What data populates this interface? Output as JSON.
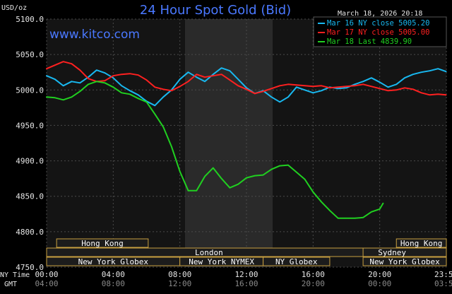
{
  "chart_data": {
    "type": "line",
    "title": "24 Hour Spot Gold (Bid)",
    "brand": "www.kitco.com",
    "timestamp": "March 18, 2026 20:18",
    "ylabel": "USD/oz",
    "ylim": [
      4750,
      5100
    ],
    "y_ticks": [
      "5100.0",
      "5050.0",
      "5000.0",
      "4950.0",
      "4900.0",
      "4850.0",
      "4800.0",
      "4750.0"
    ],
    "x_row_label": "NY Time",
    "x_row2_label": "GMT",
    "x_ticks": [
      "00:00",
      "04:00",
      "08:00",
      "12:00",
      "16:00",
      "20:00",
      "23:59"
    ],
    "x_ticks_gmt": [
      "04:00",
      "08:00",
      "12:00",
      "16:00",
      "20:00",
      "00:00",
      "03:59"
    ],
    "legend": [
      {
        "label": "Mar 16 NY close 5005.20",
        "color": "#18b8f0"
      },
      {
        "label": "Mar 17 NY close 5005.00",
        "color": "#ff2020"
      },
      {
        "label": "Mar 18 Last 4839.90",
        "color": "#20d020"
      }
    ],
    "sessions": [
      {
        "name": "Hong Kong"
      },
      {
        "name": "London"
      },
      {
        "name": "New York Globex"
      },
      {
        "name": "New York NYMEX"
      },
      {
        "name": "NY Globex"
      },
      {
        "name": "Hong Kong"
      },
      {
        "name": "Sydney"
      },
      {
        "name": "New York Globex"
      }
    ],
    "series": [
      {
        "name": "Mar 16",
        "color": "#18b8f0",
        "x": [
          0,
          0.5,
          1,
          1.5,
          2,
          2.5,
          3,
          3.5,
          4,
          4.5,
          5,
          5.5,
          6,
          6.5,
          7,
          7.5,
          8,
          8.5,
          9,
          9.5,
          10,
          10.5,
          11,
          11.5,
          12,
          12.5,
          13,
          13.5,
          14,
          14.5,
          15,
          15.5,
          16,
          16.5,
          17,
          17.5,
          18,
          18.5,
          19,
          19.5,
          20,
          20.5,
          21,
          21.5,
          22,
          22.5,
          23,
          23.5,
          23.98
        ],
        "y": [
          5020,
          5015,
          5006,
          5012,
          5010,
          5018,
          5028,
          5024,
          5017,
          5006,
          4999,
          4993,
          4984,
          4978,
          4990,
          5000,
          5015,
          5025,
          5018,
          5012,
          5022,
          5031,
          5027,
          5015,
          5003,
          4995,
          4999,
          4990,
          4983,
          4990,
          5004,
          5000,
          4996,
          4999,
          5004,
          5002,
          5003,
          5008,
          5012,
          5017,
          5011,
          5004,
          5008,
          5017,
          5022,
          5025,
          5027,
          5030,
          5026
        ]
      },
      {
        "name": "Mar 17",
        "color": "#ff2020",
        "x": [
          0,
          0.5,
          1,
          1.5,
          2,
          2.5,
          3,
          3.5,
          4,
          4.5,
          5,
          5.5,
          6,
          6.5,
          7,
          7.5,
          8,
          8.5,
          9,
          9.5,
          10,
          10.5,
          11,
          11.5,
          12,
          12.5,
          13,
          13.5,
          14,
          14.5,
          15,
          15.5,
          16,
          16.5,
          17,
          17.5,
          18,
          18.5,
          19,
          19.5,
          20,
          20.5,
          21,
          21.5,
          22,
          22.5,
          23,
          23.5,
          23.98
        ],
        "y": [
          5030,
          5035,
          5040,
          5037,
          5028,
          5016,
          5012,
          5013,
          5020,
          5022,
          5023,
          5021,
          5014,
          5004,
          5001,
          4999,
          5005,
          5012,
          5022,
          5018,
          5020,
          5022,
          5014,
          5006,
          5001,
          4995,
          4998,
          5002,
          5006,
          5008,
          5007,
          5006,
          5005,
          5006,
          5003,
          5004,
          5005,
          5006,
          5008,
          5005,
          5002,
          4999,
          5000,
          5003,
          5001,
          4996,
          4993,
          4994,
          4993
        ]
      },
      {
        "name": "Mar 18",
        "color": "#20d020",
        "x": [
          0,
          0.5,
          1,
          1.5,
          2,
          2.5,
          3,
          3.5,
          4,
          4.5,
          5,
          5.5,
          6,
          6.5,
          7,
          7.5,
          8,
          8.5,
          9,
          9.5,
          10,
          10.5,
          11,
          11.5,
          12,
          12.5,
          13,
          13.5,
          14,
          14.5,
          15,
          15.5,
          16,
          16.5,
          17,
          17.5,
          18,
          18.5,
          19,
          19.5,
          20,
          20.2
        ],
        "y": [
          4990,
          4989,
          4986,
          4990,
          4998,
          5008,
          5012,
          5010,
          5004,
          4996,
          4994,
          4988,
          4983,
          4966,
          4948,
          4920,
          4885,
          4858,
          4858,
          4878,
          4890,
          4875,
          4862,
          4867,
          4876,
          4879,
          4880,
          4888,
          4893,
          4894,
          4884,
          4874,
          4856,
          4842,
          4830,
          4819,
          4819,
          4819,
          4820,
          4828,
          4832,
          4840
        ]
      }
    ]
  }
}
